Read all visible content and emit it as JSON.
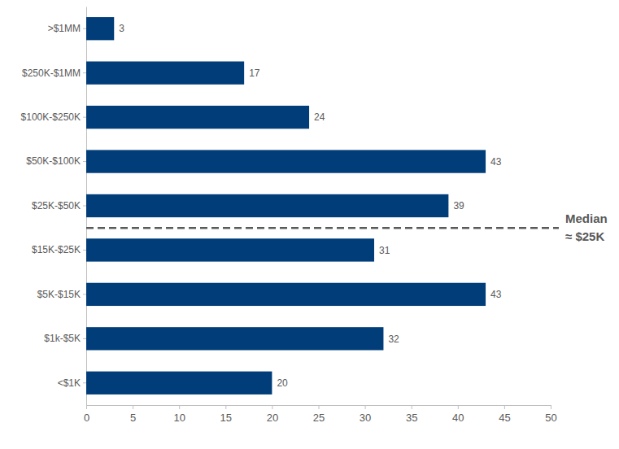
{
  "chart_data": {
    "type": "bar",
    "orientation": "horizontal",
    "categories": [
      ">$1MM",
      "$250K-$1MM",
      "$100K-$250K",
      "$50K-$100K",
      "$25K-$50K",
      "$15K-$25K",
      "$5K-$15K",
      "$1k-$5K",
      "<$1K"
    ],
    "values": [
      3,
      17,
      24,
      43,
      39,
      31,
      43,
      32,
      20
    ],
    "color": "#003d79",
    "xlim": [
      0,
      50
    ],
    "xticks": [
      0,
      5,
      10,
      15,
      20,
      25,
      30,
      35,
      40,
      45,
      50
    ],
    "grid": false,
    "data_labels": true,
    "annotations": [
      {
        "text": [
          "Median",
          "≈ $25K"
        ],
        "below": "$25K-$50K",
        "line_style": "dashed"
      }
    ]
  }
}
